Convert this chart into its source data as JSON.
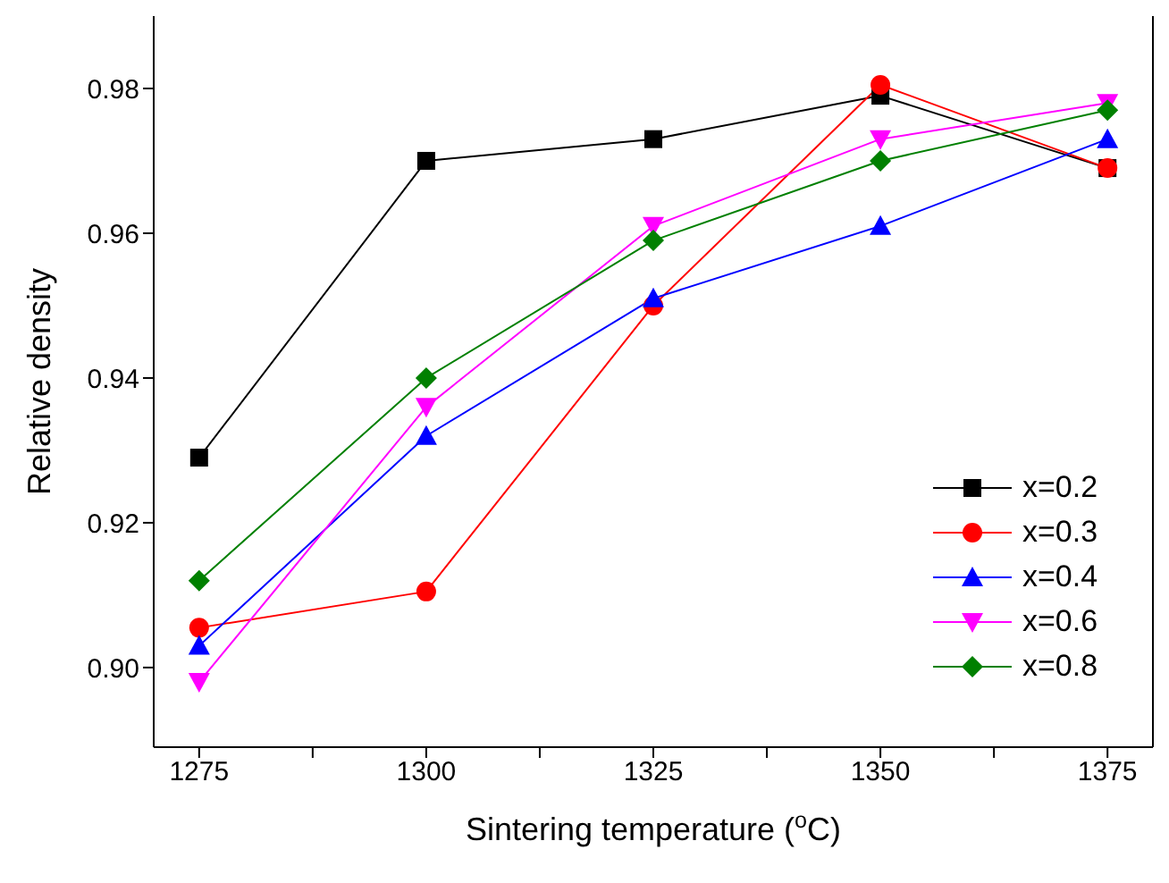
{
  "chart_data": {
    "type": "line",
    "xlabel": "Sintering temperature ($^{o}$C)",
    "ylabel": "Relative density",
    "x": [
      1275,
      1300,
      1325,
      1350,
      1375
    ],
    "series": [
      {
        "name": "x=0.2",
        "color": "#000000",
        "marker": "square",
        "values": [
          0.929,
          0.97,
          0.973,
          0.979,
          0.969
        ]
      },
      {
        "name": "x=0.3",
        "color": "#ff0000",
        "marker": "circle",
        "values": [
          0.9055,
          0.9105,
          0.95,
          0.9805,
          0.969
        ]
      },
      {
        "name": "x=0.4",
        "color": "#0000ff",
        "marker": "triangle",
        "values": [
          0.903,
          0.932,
          0.951,
          0.961,
          0.973
        ]
      },
      {
        "name": "x=0.6",
        "color": "#ff00ff",
        "marker": "triangle-down",
        "values": [
          0.898,
          0.936,
          0.961,
          0.973,
          0.978
        ]
      },
      {
        "name": "x=0.8",
        "color": "#008000",
        "marker": "diamond",
        "values": [
          0.912,
          0.94,
          0.959,
          0.97,
          0.977
        ]
      }
    ],
    "xlim": [
      1270,
      1380
    ],
    "xticks": [
      1275,
      {
        "value": 1287.5,
        "label": null
      },
      1300,
      {
        "value": 1312.5,
        "label": null
      },
      1325,
      {
        "value": 1337.5,
        "label": null
      },
      1350,
      {
        "value": 1362.5,
        "label": null
      },
      1375
    ],
    "ylim": [
      0.889,
      0.99
    ],
    "yticks": [
      {
        "value": 0.9,
        "label": "0.90"
      },
      {
        "value": 0.92,
        "label": "0.92"
      },
      {
        "value": 0.94,
        "label": "0.94"
      },
      {
        "value": 0.96,
        "label": "0.96"
      },
      {
        "value": 0.98,
        "label": "0.98"
      }
    ],
    "grid": false,
    "legend": "right",
    "line_style": "solid"
  }
}
